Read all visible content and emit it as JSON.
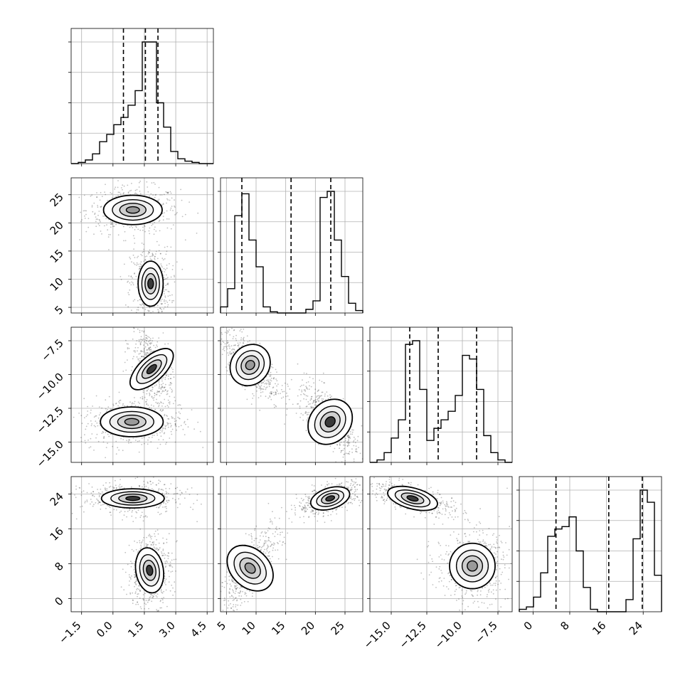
{
  "chart_data": {
    "type": "corner",
    "title": "",
    "grid": true,
    "n_params": 4,
    "params": [
      {
        "range": [
          -2.0,
          4.8
        ],
        "ticks": [
          -1.5,
          0.0,
          1.5,
          3.0,
          4.5
        ],
        "tick_labels": [
          "−1.5",
          "0.0",
          "1.5",
          "3.0",
          "4.5"
        ],
        "label": ""
      },
      {
        "range": [
          4.0,
          28.0
        ],
        "ticks": [
          5,
          10,
          15,
          20,
          25
        ],
        "tick_labels": [
          "5",
          "10",
          "15",
          "20",
          "25"
        ],
        "label": ""
      },
      {
        "range": [
          -16.5,
          -6.5
        ],
        "ticks": [
          -15.0,
          -12.5,
          -10.0,
          -7.5
        ],
        "tick_labels": [
          "−15.0",
          "−12.5",
          "−10.0",
          "−7.5"
        ],
        "label": ""
      },
      {
        "range": [
          -3.0,
          28.0
        ],
        "ticks": [
          0,
          8,
          16,
          24
        ],
        "tick_labels": [
          "0",
          "8",
          "16",
          "24"
        ],
        "label": ""
      }
    ],
    "histograms": [
      {
        "param": 0,
        "bin_edges": [
          -2.0,
          -1.66,
          -1.32,
          -0.98,
          -0.64,
          -0.3,
          0.04,
          0.38,
          0.72,
          1.06,
          1.4,
          1.74,
          2.08,
          2.42,
          2.76,
          3.1,
          3.44,
          3.78,
          4.12,
          4.46,
          4.8
        ],
        "counts": [
          0.0,
          0.01,
          0.03,
          0.08,
          0.18,
          0.24,
          0.32,
          0.38,
          0.48,
          0.6,
          1.0,
          1.0,
          0.5,
          0.3,
          0.1,
          0.04,
          0.02,
          0.01,
          0.0,
          0.0
        ],
        "quantiles": [
          0.5,
          1.55,
          2.15
        ]
      },
      {
        "param": 1,
        "bin_edges": [
          4.0,
          5.2,
          6.4,
          7.6,
          8.8,
          10.0,
          11.2,
          12.4,
          13.6,
          14.8,
          16.0,
          17.2,
          18.4,
          19.6,
          20.8,
          22.0,
          23.2,
          24.4,
          25.6,
          26.8,
          28.0
        ],
        "counts": [
          0.05,
          0.2,
          0.8,
          0.98,
          0.6,
          0.38,
          0.05,
          0.01,
          0.0,
          0.0,
          0.0,
          0.0,
          0.03,
          0.1,
          0.95,
          1.0,
          0.6,
          0.3,
          0.08,
          0.02
        ],
        "quantiles": [
          7.6,
          15.9,
          22.6
        ]
      },
      {
        "param": 2,
        "bin_edges": [
          -16.5,
          -16.0,
          -15.5,
          -15.0,
          -14.5,
          -14.0,
          -13.5,
          -13.0,
          -12.5,
          -12.0,
          -11.5,
          -11.0,
          -10.5,
          -10.0,
          -9.5,
          -9.0,
          -8.5,
          -8.0,
          -7.5,
          -7.0,
          -6.5
        ],
        "counts": [
          0.0,
          0.02,
          0.08,
          0.2,
          0.35,
          0.97,
          1.0,
          0.6,
          0.18,
          0.28,
          0.35,
          0.42,
          0.55,
          0.88,
          0.85,
          0.6,
          0.22,
          0.08,
          0.02,
          0.0
        ],
        "quantiles": [
          -13.7,
          -11.7,
          -9.0
        ]
      },
      {
        "param": 3,
        "bin_edges": [
          -3.0,
          -1.45,
          0.1,
          1.65,
          3.2,
          4.75,
          6.3,
          7.85,
          9.4,
          10.95,
          12.5,
          14.05,
          15.6,
          17.15,
          18.7,
          20.25,
          21.8,
          23.35,
          24.9,
          26.45,
          28.0
        ],
        "counts": [
          0.02,
          0.04,
          0.12,
          0.32,
          0.62,
          0.68,
          0.7,
          0.78,
          0.5,
          0.2,
          0.02,
          0.0,
          0.0,
          0.0,
          0.0,
          0.1,
          0.6,
          1.0,
          0.9,
          0.3
        ],
        "quantiles": [
          5.0,
          16.5,
          23.8
        ]
      }
    ],
    "contours": [
      {
        "px": 0,
        "py": 1,
        "modes": [
          {
            "cx": 0.95,
            "cy": 22.3,
            "sx": 0.7,
            "sy": 1.3,
            "rho": 0.0,
            "peak": 0.45
          },
          {
            "cx": 1.8,
            "cy": 9.2,
            "sx": 0.3,
            "sy": 2.0,
            "rho": 0.0,
            "peak": 0.95
          }
        ]
      },
      {
        "px": 0,
        "py": 2,
        "modes": [
          {
            "cx": 1.85,
            "cy": -9.6,
            "sx": 0.3,
            "sy": 1.0,
            "rho": -0.5,
            "peak": 0.9
          },
          {
            "cx": 0.9,
            "cy": -13.5,
            "sx": 0.75,
            "sy": 0.55,
            "rho": 0.0,
            "peak": 0.45
          }
        ]
      },
      {
        "px": 1,
        "py": 2,
        "modes": [
          {
            "cx": 9.0,
            "cy": -9.3,
            "sx": 1.6,
            "sy": 0.8,
            "rho": -0.7,
            "peak": 0.55
          },
          {
            "cx": 22.5,
            "cy": -13.5,
            "sx": 1.7,
            "sy": 0.9,
            "rho": -0.75,
            "peak": 0.95
          }
        ]
      },
      {
        "px": 0,
        "py": 3,
        "modes": [
          {
            "cx": 0.95,
            "cy": 23.0,
            "sx": 0.75,
            "sy": 1.1,
            "rho": 0.0,
            "peak": 0.95
          },
          {
            "cx": 1.75,
            "cy": 6.5,
            "sx": 0.33,
            "sy": 2.6,
            "rho": 0.1,
            "peak": 0.85
          }
        ]
      },
      {
        "px": 1,
        "py": 3,
        "modes": [
          {
            "cx": 22.5,
            "cy": 23.0,
            "sx": 1.7,
            "sy": 1.2,
            "rho": 0.6,
            "peak": 0.95
          },
          {
            "cx": 9.0,
            "cy": 7.0,
            "sx": 1.6,
            "sy": 3.0,
            "rho": 0.75,
            "peak": 0.5
          }
        ]
      },
      {
        "px": 2,
        "py": 3,
        "modes": [
          {
            "cx": -13.5,
            "cy": 23.0,
            "sx": 0.9,
            "sy": 1.2,
            "rho": -0.65,
            "peak": 0.85
          },
          {
            "cx": -9.3,
            "cy": 7.5,
            "sx": 0.8,
            "sy": 2.6,
            "rho": 0.0,
            "peak": 0.2
          }
        ]
      }
    ]
  }
}
